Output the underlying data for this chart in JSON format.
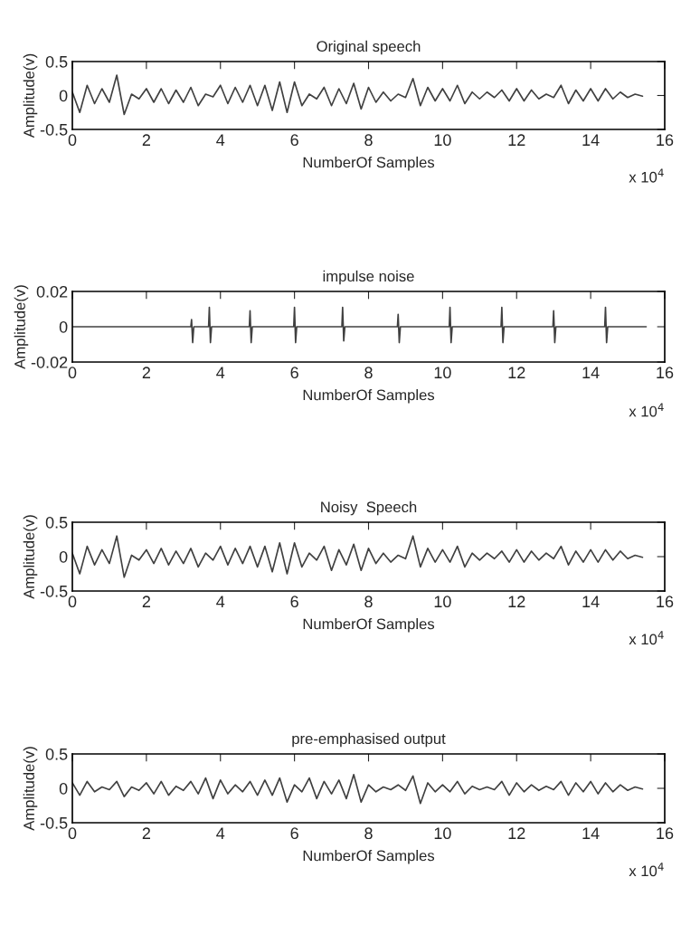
{
  "chart_data": [
    {
      "type": "line",
      "title": "Original speech",
      "xlabel": "NumberOf Samples",
      "ylabel": "Amplitude(v)",
      "annotations": [
        "x 10$^{4}$"
      ],
      "grid": false,
      "xlim": [
        0,
        16
      ],
      "xticks": [
        0,
        2,
        4,
        6,
        8,
        10,
        12,
        14,
        16
      ],
      "ylim": [
        -0.5,
        0.5
      ],
      "yticks": [
        -0.5,
        0,
        0.5
      ],
      "x": [
        0,
        0.2,
        0.4,
        0.6,
        0.8,
        1.0,
        1.2,
        1.4,
        1.6,
        1.8,
        2.0,
        2.2,
        2.4,
        2.6,
        2.8,
        3.0,
        3.2,
        3.4,
        3.6,
        3.8,
        4.0,
        4.2,
        4.4,
        4.6,
        4.8,
        5.0,
        5.2,
        5.4,
        5.6,
        5.8,
        6.0,
        6.2,
        6.4,
        6.6,
        6.8,
        7.0,
        7.2,
        7.4,
        7.6,
        7.8,
        8.0,
        8.2,
        8.4,
        8.6,
        8.8,
        9.0,
        9.2,
        9.4,
        9.6,
        9.8,
        10.0,
        10.2,
        10.4,
        10.6,
        10.8,
        11.0,
        11.2,
        11.4,
        11.6,
        11.8,
        12.0,
        12.2,
        12.4,
        12.6,
        12.8,
        13.0,
        13.2,
        13.4,
        13.6,
        13.8,
        14.0,
        14.2,
        14.4,
        14.6,
        14.8,
        15.0,
        15.2,
        15.4
      ],
      "series": [
        {
          "color": "#404040",
          "values": [
            0.05,
            -0.25,
            0.15,
            -0.12,
            0.1,
            -0.1,
            0.3,
            -0.28,
            0.02,
            -0.05,
            0.1,
            -0.1,
            0.1,
            -0.12,
            0.08,
            -0.1,
            0.12,
            -0.15,
            0.02,
            -0.02,
            0.15,
            -0.12,
            0.12,
            -0.1,
            0.15,
            -0.15,
            0.15,
            -0.22,
            0.2,
            -0.25,
            0.2,
            -0.15,
            0.02,
            -0.05,
            0.12,
            -0.15,
            0.1,
            -0.12,
            0.18,
            -0.2,
            0.12,
            -0.1,
            0.05,
            -0.08,
            0.02,
            -0.03,
            0.25,
            -0.15,
            0.12,
            -0.08,
            0.1,
            -0.08,
            0.15,
            -0.12,
            0.05,
            -0.05,
            0.05,
            -0.03,
            0.08,
            -0.08,
            0.1,
            -0.08,
            0.08,
            -0.05,
            0.02,
            -0.03,
            0.15,
            -0.12,
            0.08,
            -0.08,
            0.1,
            -0.08,
            0.1,
            -0.05,
            0.05,
            -0.03,
            0.02,
            -0.01
          ]
        }
      ]
    },
    {
      "type": "line",
      "title": "impulse noise",
      "xlabel": "NumberOf Samples",
      "ylabel": "Amplitude(v)",
      "annotations": [
        "x 10$^{4}$"
      ],
      "grid": false,
      "xlim": [
        0,
        16
      ],
      "xticks": [
        0,
        2,
        4,
        6,
        8,
        10,
        12,
        14,
        16
      ],
      "ylim": [
        -0.02,
        0.02
      ],
      "yticks": [
        -0.02,
        0,
        0.02
      ],
      "x": [
        0,
        3.2,
        3.22,
        3.25,
        3.28,
        3.68,
        3.7,
        3.73,
        3.76,
        4.78,
        4.8,
        4.83,
        4.86,
        5.98,
        6.0,
        6.03,
        6.06,
        7.28,
        7.3,
        7.33,
        7.36,
        8.78,
        8.8,
        8.83,
        8.86,
        10.18,
        10.2,
        10.23,
        10.26,
        11.58,
        11.6,
        11.63,
        11.66,
        12.98,
        13.0,
        13.03,
        13.06,
        14.38,
        14.4,
        14.43,
        14.46,
        15.5
      ],
      "series": [
        {
          "color": "#404040",
          "values": [
            0,
            0,
            0.004,
            -0.009,
            0,
            0,
            0.011,
            -0.009,
            0,
            0,
            0.009,
            -0.009,
            0,
            0,
            0.011,
            -0.009,
            0,
            0,
            0.011,
            -0.008,
            0,
            0,
            0.007,
            -0.009,
            0,
            0,
            0.011,
            -0.009,
            0,
            0,
            0.011,
            -0.009,
            0,
            0,
            0.009,
            -0.009,
            0,
            0,
            0.011,
            -0.009,
            0,
            0
          ]
        }
      ]
    },
    {
      "type": "line",
      "title": "Noisy  Speech",
      "xlabel": "NumberOf Samples",
      "ylabel": "Amplitude(v)",
      "annotations": [
        "x 10$^{4}$"
      ],
      "grid": false,
      "xlim": [
        0,
        16
      ],
      "xticks": [
        0,
        2,
        4,
        6,
        8,
        10,
        12,
        14,
        16
      ],
      "ylim": [
        -0.5,
        0.5
      ],
      "yticks": [
        -0.5,
        0,
        0.5
      ],
      "x": [
        0,
        0.2,
        0.4,
        0.6,
        0.8,
        1.0,
        1.2,
        1.4,
        1.6,
        1.8,
        2.0,
        2.2,
        2.4,
        2.6,
        2.8,
        3.0,
        3.2,
        3.4,
        3.6,
        3.8,
        4.0,
        4.2,
        4.4,
        4.6,
        4.8,
        5.0,
        5.2,
        5.4,
        5.6,
        5.8,
        6.0,
        6.2,
        6.4,
        6.6,
        6.8,
        7.0,
        7.2,
        7.4,
        7.6,
        7.8,
        8.0,
        8.2,
        8.4,
        8.6,
        8.8,
        9.0,
        9.2,
        9.4,
        9.6,
        9.8,
        10.0,
        10.2,
        10.4,
        10.6,
        10.8,
        11.0,
        11.2,
        11.4,
        11.6,
        11.8,
        12.0,
        12.2,
        12.4,
        12.6,
        12.8,
        13.0,
        13.2,
        13.4,
        13.6,
        13.8,
        14.0,
        14.2,
        14.4,
        14.6,
        14.8,
        15.0,
        15.2,
        15.4
      ],
      "series": [
        {
          "color": "#404040",
          "values": [
            0.05,
            -0.25,
            0.15,
            -0.12,
            0.1,
            -0.1,
            0.3,
            -0.3,
            0.02,
            -0.05,
            0.1,
            -0.1,
            0.12,
            -0.12,
            0.08,
            -0.1,
            0.12,
            -0.15,
            0.05,
            -0.05,
            0.15,
            -0.12,
            0.12,
            -0.1,
            0.15,
            -0.15,
            0.15,
            -0.22,
            0.2,
            -0.25,
            0.2,
            -0.15,
            0.05,
            -0.05,
            0.15,
            -0.2,
            0.1,
            -0.12,
            0.18,
            -0.2,
            0.12,
            -0.1,
            0.05,
            -0.08,
            0.02,
            -0.03,
            0.3,
            -0.15,
            0.12,
            -0.08,
            0.1,
            -0.08,
            0.15,
            -0.15,
            0.05,
            -0.05,
            0.05,
            -0.03,
            0.08,
            -0.08,
            0.1,
            -0.08,
            0.08,
            -0.05,
            0.05,
            -0.03,
            0.15,
            -0.12,
            0.08,
            -0.08,
            0.1,
            -0.08,
            0.1,
            -0.05,
            0.08,
            -0.03,
            0.02,
            -0.01
          ]
        }
      ]
    },
    {
      "type": "line",
      "title": "pre-emphasised output",
      "xlabel": "NumberOf Samples",
      "ylabel": "Amplitude(v)",
      "annotations": [
        "x 10$^{4}$"
      ],
      "grid": false,
      "xlim": [
        0,
        16
      ],
      "xticks": [
        0,
        2,
        4,
        6,
        8,
        10,
        12,
        14,
        16
      ],
      "ylim": [
        -0.5,
        0.5
      ],
      "yticks": [
        -0.5,
        0,
        0.5
      ],
      "x": [
        0,
        0.2,
        0.4,
        0.6,
        0.8,
        1.0,
        1.2,
        1.4,
        1.6,
        1.8,
        2.0,
        2.2,
        2.4,
        2.6,
        2.8,
        3.0,
        3.2,
        3.4,
        3.6,
        3.8,
        4.0,
        4.2,
        4.4,
        4.6,
        4.8,
        5.0,
        5.2,
        5.4,
        5.6,
        5.8,
        6.0,
        6.2,
        6.4,
        6.6,
        6.8,
        7.0,
        7.2,
        7.4,
        7.6,
        7.8,
        8.0,
        8.2,
        8.4,
        8.6,
        8.8,
        9.0,
        9.2,
        9.4,
        9.6,
        9.8,
        10.0,
        10.2,
        10.4,
        10.6,
        10.8,
        11.0,
        11.2,
        11.4,
        11.6,
        11.8,
        12.0,
        12.2,
        12.4,
        12.6,
        12.8,
        13.0,
        13.2,
        13.4,
        13.6,
        13.8,
        14.0,
        14.2,
        14.4,
        14.6,
        14.8,
        15.0,
        15.2,
        15.4
      ],
      "series": [
        {
          "color": "#404040",
          "values": [
            0.08,
            -0.1,
            0.1,
            -0.05,
            0.02,
            -0.02,
            0.1,
            -0.12,
            0.02,
            -0.03,
            0.08,
            -0.08,
            0.1,
            -0.1,
            0.03,
            -0.03,
            0.1,
            -0.08,
            0.15,
            -0.15,
            0.12,
            -0.08,
            0.05,
            -0.05,
            0.1,
            -0.1,
            0.12,
            -0.1,
            0.15,
            -0.2,
            0.05,
            -0.05,
            0.15,
            -0.15,
            0.1,
            -0.08,
            0.12,
            -0.15,
            0.2,
            -0.2,
            0.05,
            -0.05,
            0.02,
            -0.02,
            0.05,
            -0.03,
            0.18,
            -0.22,
            0.08,
            -0.05,
            0.05,
            -0.05,
            0.1,
            -0.08,
            0.03,
            -0.02,
            0.02,
            -0.02,
            0.1,
            -0.1,
            0.08,
            -0.05,
            0.05,
            -0.03,
            0.03,
            -0.02,
            0.1,
            -0.1,
            0.08,
            -0.05,
            0.1,
            -0.08,
            0.08,
            -0.05,
            0.05,
            -0.03,
            0.02,
            -0.01
          ]
        }
      ]
    }
  ]
}
